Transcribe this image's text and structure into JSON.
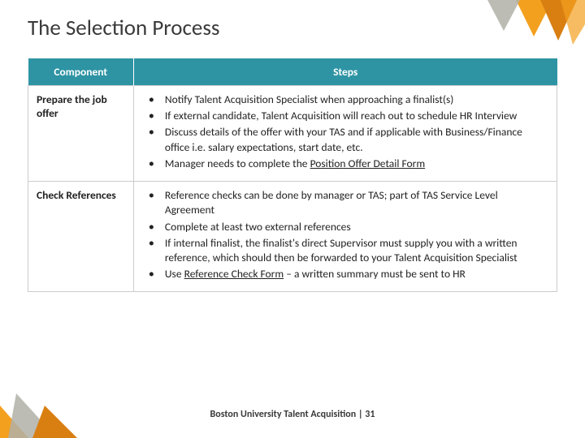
{
  "title": "The Selection Process",
  "table": {
    "headers": {
      "component": "Component",
      "steps": "Steps"
    },
    "header_bg": "#2e94a4",
    "header_fg": "#ffffff",
    "cell_bg": "#ffffff",
    "cell_fg": "#222222",
    "border_color": "#cccccc",
    "rows": [
      {
        "component": "Prepare the job offer",
        "steps": [
          {
            "text": "Notify Talent Acquisition Specialist when approaching a finalist(s)"
          },
          {
            "text": "If external candidate, Talent Acquisition will reach out to schedule HR Interview"
          },
          {
            "text": "Discuss details of the offer with your TAS and if applicable with Business/Finance office  i.e. salary expectations, start date, etc."
          },
          {
            "prefix": "Manager needs to complete the ",
            "underlined": "Position Offer Detail Form"
          }
        ]
      },
      {
        "component": "Check References",
        "steps": [
          {
            "text": "Reference checks can be done by manager or TAS; part of TAS Service Level Agreement"
          },
          {
            "text": "Complete at least two external references"
          },
          {
            "text": "If internal finalist, the finalist's direct Supervisor must supply you with a written reference, which should then be forwarded to your Talent Acquisition Specialist"
          },
          {
            "prefix": "Use ",
            "underlined": "Reference Check Form",
            "suffix": " – a written summary must be sent to HR"
          }
        ]
      }
    ]
  },
  "footer": {
    "org": "Boston University Talent Acquisition",
    "sep": " | ",
    "page": "31"
  },
  "decor": {
    "colors": {
      "orange": "#f4a01f",
      "grey": "#b0b0a8",
      "dark_orange": "#d97f12"
    }
  }
}
